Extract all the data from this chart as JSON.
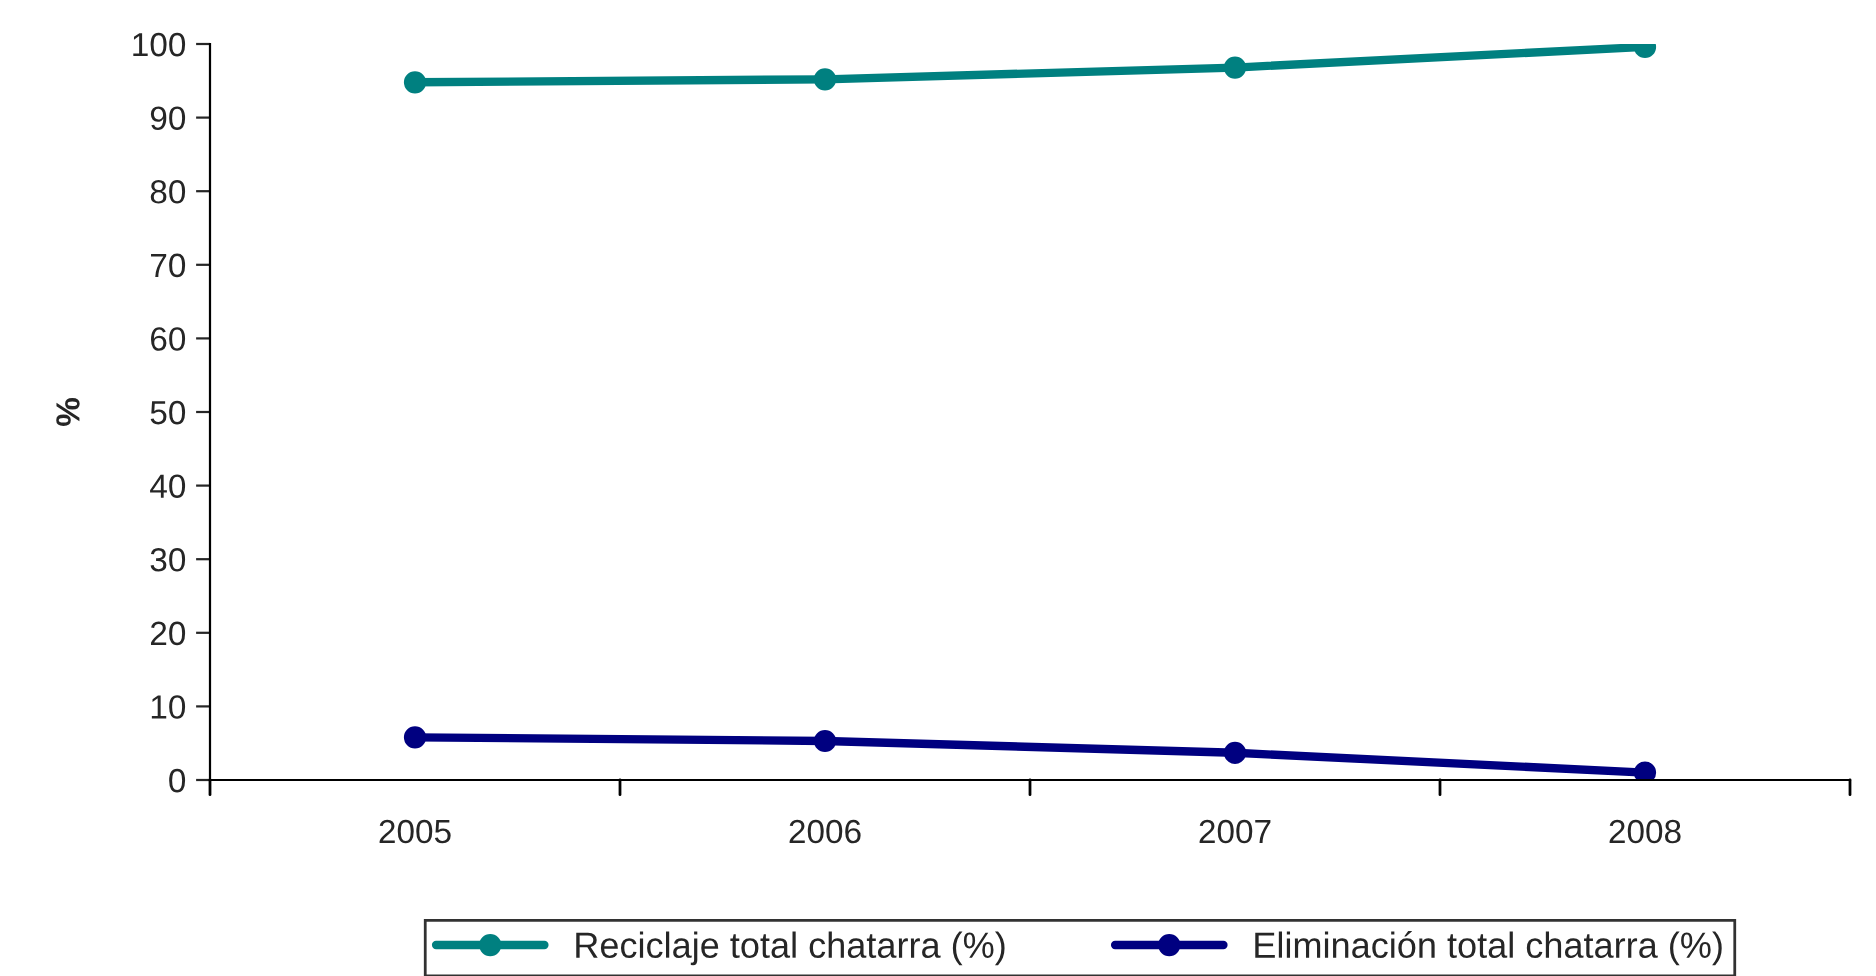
{
  "chart_data": {
    "type": "line",
    "ylabel": "%",
    "categories": [
      "2005",
      "2006",
      "2007",
      "2008"
    ],
    "series": [
      {
        "name": "Reciclaje total chatarra (%)",
        "color": "#008080",
        "values": [
          94.8,
          95.2,
          96.8,
          99.6
        ]
      },
      {
        "name": "Eliminación total chatarra (%)",
        "color": "#000080",
        "values": [
          5.8,
          5.3,
          3.7,
          1.0
        ]
      }
    ],
    "ylim": [
      0,
      100
    ],
    "yticks": [
      0,
      10,
      20,
      30,
      40,
      50,
      60,
      70,
      80,
      90,
      100
    ],
    "grid": false,
    "legend": "bottom",
    "marker": "circle",
    "line_style": "solid"
  }
}
